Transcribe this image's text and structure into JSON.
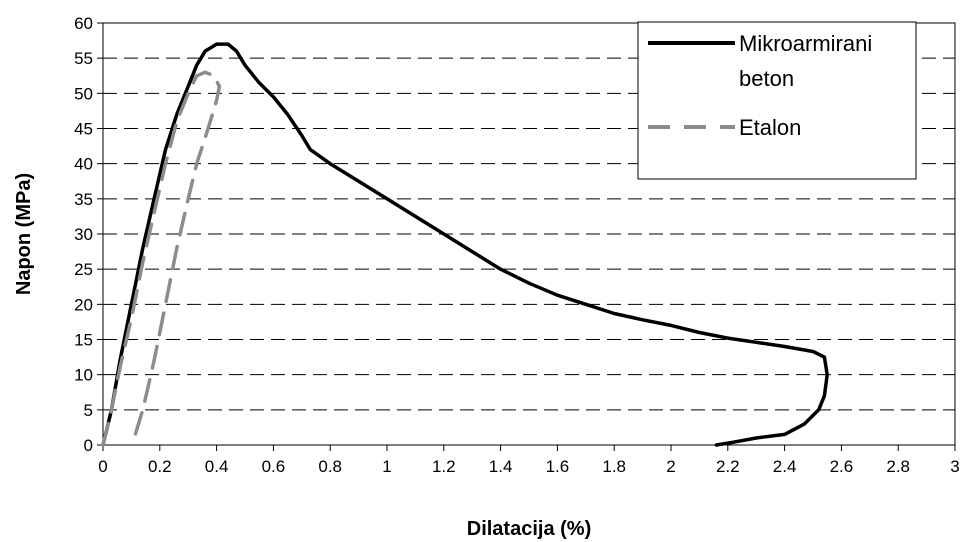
{
  "chart_data": {
    "type": "line",
    "title": "",
    "xlabel": "Dilatacija (%)",
    "ylabel": "Napon (MPa)",
    "xlim": [
      0,
      3
    ],
    "ylim": [
      0,
      60
    ],
    "xticks": [
      "0",
      "0.2",
      "0.4",
      "0.6",
      "0.8",
      "1",
      "1.2",
      "1.4",
      "1.6",
      "1.8",
      "2",
      "2.2",
      "2.4",
      "2.6",
      "2.8",
      "3"
    ],
    "yticks": [
      "0",
      "5",
      "10",
      "15",
      "20",
      "25",
      "30",
      "35",
      "40",
      "45",
      "50",
      "55",
      "60"
    ],
    "grid": "horizontal dashed",
    "legend_position": "top-right",
    "series": [
      {
        "name": "Mikroarmirani beton",
        "color": "#000000",
        "style": "solid",
        "points": [
          [
            0,
            0
          ],
          [
            0.03,
            5
          ],
          [
            0.06,
            12
          ],
          [
            0.1,
            20
          ],
          [
            0.14,
            28
          ],
          [
            0.18,
            35
          ],
          [
            0.22,
            42
          ],
          [
            0.26,
            47
          ],
          [
            0.3,
            51
          ],
          [
            0.33,
            54
          ],
          [
            0.36,
            56
          ],
          [
            0.4,
            57
          ],
          [
            0.44,
            57
          ],
          [
            0.47,
            56
          ],
          [
            0.5,
            54
          ],
          [
            0.55,
            51.5
          ],
          [
            0.6,
            49.5
          ],
          [
            0.65,
            47
          ],
          [
            0.7,
            44
          ],
          [
            0.73,
            42
          ],
          [
            0.8,
            40
          ],
          [
            0.9,
            37.5
          ],
          [
            1.0,
            35
          ],
          [
            1.1,
            32.5
          ],
          [
            1.2,
            30
          ],
          [
            1.3,
            27.5
          ],
          [
            1.4,
            25
          ],
          [
            1.5,
            23
          ],
          [
            1.6,
            21.3
          ],
          [
            1.7,
            20
          ],
          [
            1.8,
            18.7
          ],
          [
            1.9,
            17.8
          ],
          [
            2.0,
            17
          ],
          [
            2.1,
            16
          ],
          [
            2.2,
            15.2
          ],
          [
            2.3,
            14.6
          ],
          [
            2.4,
            14
          ],
          [
            2.5,
            13.3
          ],
          [
            2.54,
            12.5
          ],
          [
            2.55,
            10
          ],
          [
            2.54,
            7
          ],
          [
            2.52,
            5
          ],
          [
            2.47,
            3
          ],
          [
            2.4,
            1.5
          ],
          [
            2.3,
            1
          ],
          [
            2.22,
            0.4
          ],
          [
            2.16,
            0
          ]
        ]
      },
      {
        "name": "Etalon",
        "color": "#8c8c8c",
        "style": "dashed",
        "points": [
          [
            0,
            0
          ],
          [
            0.03,
            5
          ],
          [
            0.06,
            11
          ],
          [
            0.1,
            18
          ],
          [
            0.14,
            26
          ],
          [
            0.18,
            33
          ],
          [
            0.22,
            40
          ],
          [
            0.26,
            46
          ],
          [
            0.3,
            50
          ],
          [
            0.33,
            52.5
          ],
          [
            0.36,
            53
          ],
          [
            0.39,
            52.5
          ],
          [
            0.41,
            51
          ],
          [
            0.4,
            49
          ],
          [
            0.37,
            45
          ],
          [
            0.33,
            40
          ],
          [
            0.3,
            35
          ],
          [
            0.26,
            28
          ],
          [
            0.22,
            20
          ],
          [
            0.18,
            12
          ],
          [
            0.14,
            5
          ],
          [
            0.11,
            1
          ],
          [
            0.1,
            0
          ]
        ]
      }
    ]
  }
}
